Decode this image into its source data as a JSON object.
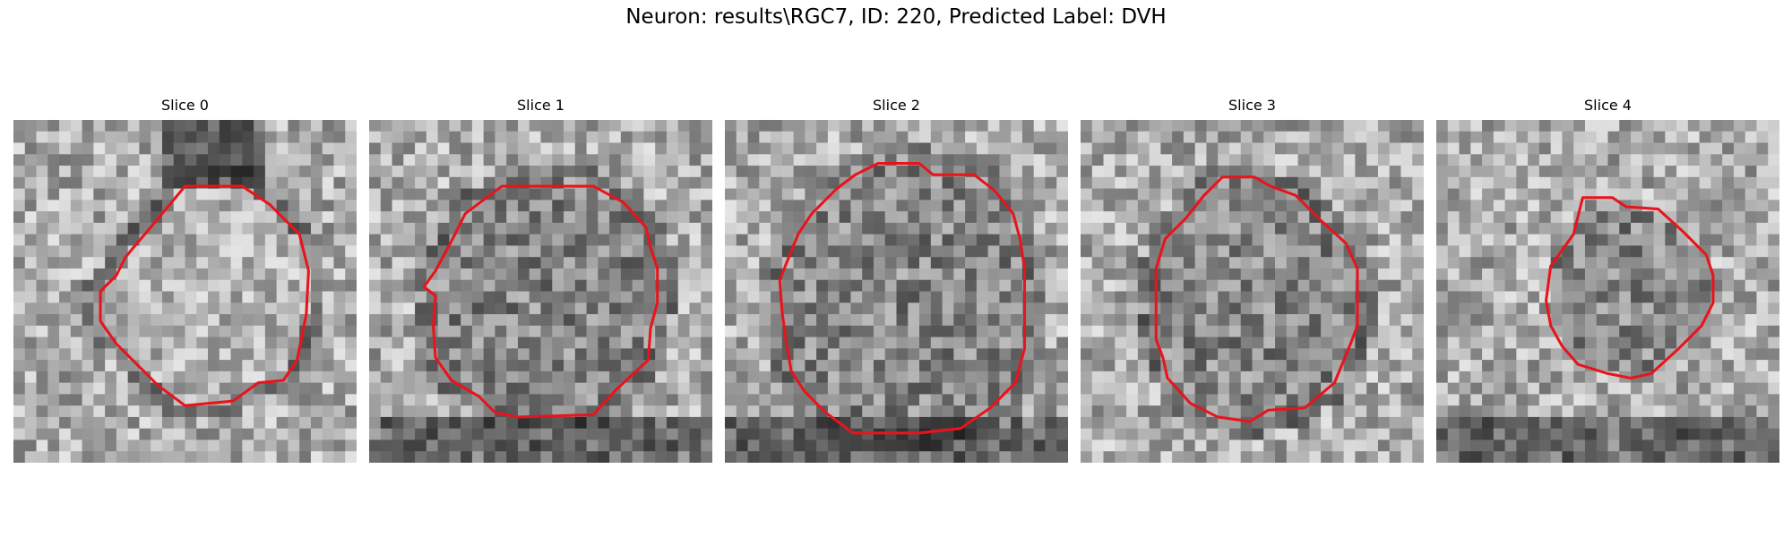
{
  "figure": {
    "title": "Neuron: results\\RGC7, ID: 220, Predicted Label: DVH"
  },
  "contour_color": "#e8141c",
  "panels": [
    {
      "title": "Slice 0",
      "seed": 11,
      "contour": [
        [
          150,
          58
        ],
        [
          176,
          58
        ],
        [
          200,
          58
        ],
        [
          224,
          74
        ],
        [
          250,
          100
        ],
        [
          258,
          132
        ],
        [
          256,
          170
        ],
        [
          248,
          210
        ],
        [
          236,
          228
        ],
        [
          214,
          230
        ],
        [
          192,
          246
        ],
        [
          150,
          250
        ],
        [
          126,
          232
        ],
        [
          110,
          216
        ],
        [
          90,
          196
        ],
        [
          76,
          176
        ],
        [
          76,
          150
        ],
        [
          90,
          136
        ],
        [
          98,
          120
        ],
        [
          108,
          108
        ],
        [
          120,
          94
        ]
      ],
      "dark_ring": true,
      "light_center": true
    },
    {
      "title": "Slice 1",
      "seed": 23,
      "contour": [
        [
          116,
          58
        ],
        [
          196,
          58
        ],
        [
          222,
          72
        ],
        [
          242,
          94
        ],
        [
          246,
          112
        ],
        [
          252,
          130
        ],
        [
          252,
          160
        ],
        [
          246,
          182
        ],
        [
          244,
          210
        ],
        [
          216,
          236
        ],
        [
          196,
          258
        ],
        [
          130,
          260
        ],
        [
          110,
          256
        ],
        [
          96,
          242
        ],
        [
          72,
          228
        ],
        [
          58,
          208
        ],
        [
          56,
          180
        ],
        [
          58,
          154
        ],
        [
          48,
          146
        ],
        [
          58,
          132
        ],
        [
          72,
          106
        ],
        [
          84,
          82
        ]
      ],
      "dark_ring": true,
      "light_center": false
    },
    {
      "title": "Slice 2",
      "seed": 37,
      "contour": [
        [
          134,
          38
        ],
        [
          170,
          38
        ],
        [
          182,
          48
        ],
        [
          218,
          48
        ],
        [
          236,
          62
        ],
        [
          252,
          82
        ],
        [
          258,
          104
        ],
        [
          262,
          130
        ],
        [
          262,
          200
        ],
        [
          254,
          230
        ],
        [
          232,
          252
        ],
        [
          206,
          270
        ],
        [
          170,
          274
        ],
        [
          112,
          274
        ],
        [
          88,
          256
        ],
        [
          70,
          238
        ],
        [
          58,
          220
        ],
        [
          54,
          196
        ],
        [
          50,
          168
        ],
        [
          48,
          140
        ],
        [
          56,
          120
        ],
        [
          64,
          100
        ],
        [
          76,
          82
        ],
        [
          98,
          60
        ],
        [
          114,
          48
        ]
      ],
      "dark_ring": true,
      "light_center": false
    },
    {
      "title": "Slice 3",
      "seed": 49,
      "contour": [
        [
          124,
          50
        ],
        [
          152,
          50
        ],
        [
          166,
          58
        ],
        [
          188,
          66
        ],
        [
          210,
          88
        ],
        [
          232,
          108
        ],
        [
          242,
          130
        ],
        [
          242,
          180
        ],
        [
          236,
          196
        ],
        [
          222,
          230
        ],
        [
          196,
          252
        ],
        [
          164,
          254
        ],
        [
          148,
          264
        ],
        [
          120,
          260
        ],
        [
          96,
          248
        ],
        [
          76,
          226
        ],
        [
          72,
          208
        ],
        [
          66,
          192
        ],
        [
          66,
          130
        ],
        [
          74,
          104
        ],
        [
          92,
          86
        ],
        [
          108,
          66
        ]
      ],
      "dark_ring": true,
      "light_center": false
    },
    {
      "title": "Slice 4",
      "seed": 61,
      "contour": [
        [
          128,
          68
        ],
        [
          154,
          68
        ],
        [
          166,
          76
        ],
        [
          194,
          78
        ],
        [
          216,
          98
        ],
        [
          236,
          118
        ],
        [
          242,
          136
        ],
        [
          242,
          160
        ],
        [
          232,
          180
        ],
        [
          212,
          200
        ],
        [
          188,
          222
        ],
        [
          170,
          226
        ],
        [
          150,
          222
        ],
        [
          124,
          214
        ],
        [
          110,
          198
        ],
        [
          100,
          180
        ],
        [
          96,
          158
        ],
        [
          100,
          128
        ],
        [
          120,
          100
        ]
      ],
      "dark_ring": false,
      "light_center": false
    }
  ]
}
